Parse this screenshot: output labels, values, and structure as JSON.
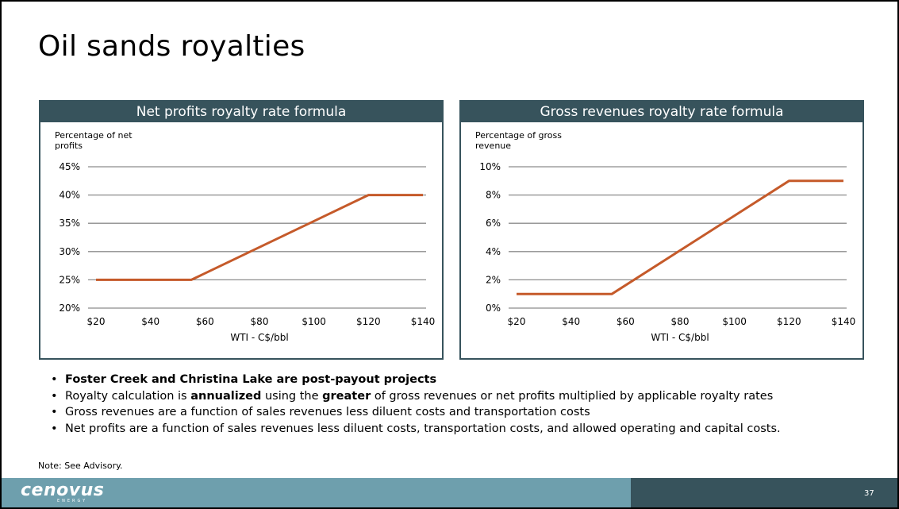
{
  "slide": {
    "title": "Oil sands royalties",
    "note": "Note: See Advisory.",
    "page_number": "37",
    "logo": "cenovus",
    "logo_sub": "ENERGY"
  },
  "bullets": [
    {
      "parts": [
        {
          "text": "Foster Creek and Christina Lake are post-payout projects",
          "bold": true
        }
      ]
    },
    {
      "parts": [
        {
          "text": "Royalty calculation is ",
          "bold": false
        },
        {
          "text": "annualized",
          "bold": true
        },
        {
          "text": " using the ",
          "bold": false
        },
        {
          "text": "greater",
          "bold": true
        },
        {
          "text": " of gross revenues or net profits multiplied by applicable royalty rates",
          "bold": false
        }
      ]
    },
    {
      "parts": [
        {
          "text": "Gross revenues are a function of sales revenues less diluent costs and transportation costs",
          "bold": false
        }
      ]
    },
    {
      "parts": [
        {
          "text": "Net profits are a function of sales revenues less diluent costs, transportation costs, and allowed operating and capital costs.",
          "bold": false
        }
      ]
    }
  ],
  "colors": {
    "header": "#37535c",
    "line": "#c55a2a",
    "grid": "#8c8c8c",
    "footer_light": "#6e9fad",
    "footer_dark": "#37535c"
  },
  "chart_data": [
    {
      "type": "line",
      "title": "Net profits royalty rate formula",
      "ylabel": "Percentage of net profits",
      "xlabel": "WTI - C$/bbl",
      "x_ticks": [
        "$20",
        "$40",
        "$60",
        "$80",
        "$100",
        "$120",
        "$140"
      ],
      "y_ticks": [
        "20%",
        "25%",
        "30%",
        "35%",
        "40%",
        "45%"
      ],
      "xlim": [
        20,
        140
      ],
      "ylim": [
        20,
        45
      ],
      "grid": true,
      "series": [
        {
          "x": [
            20,
            55,
            120,
            140
          ],
          "y": [
            25,
            25,
            40,
            40
          ]
        }
      ]
    },
    {
      "type": "line",
      "title": "Gross revenues royalty rate formula",
      "ylabel": "Percentage of gross revenue",
      "xlabel": "WTI - C$/bbl",
      "x_ticks": [
        "$20",
        "$40",
        "$60",
        "$80",
        "$100",
        "$120",
        "$140"
      ],
      "y_ticks": [
        "0%",
        "2%",
        "4%",
        "6%",
        "8%",
        "10%"
      ],
      "xlim": [
        20,
        140
      ],
      "ylim": [
        0,
        10
      ],
      "grid": true,
      "series": [
        {
          "x": [
            20,
            55,
            120,
            140
          ],
          "y": [
            1,
            1,
            9,
            9
          ]
        }
      ]
    }
  ]
}
